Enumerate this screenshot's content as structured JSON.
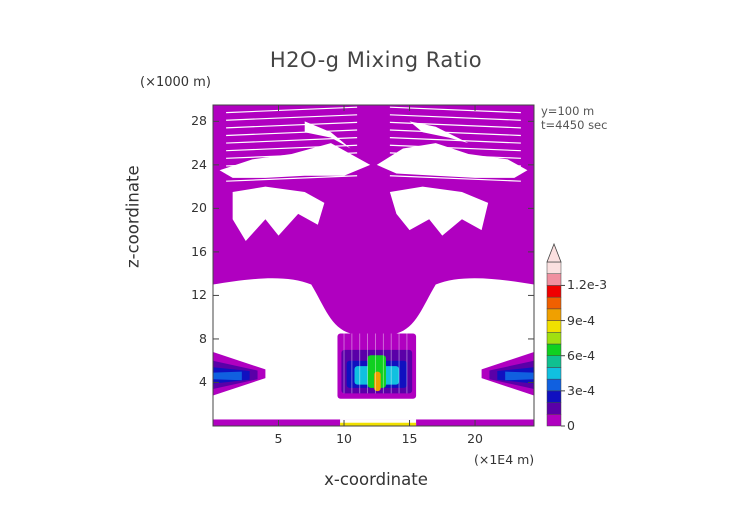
{
  "chart_data": {
    "type": "heatmap",
    "title": "H2O-g Mixing Ratio",
    "xlabel": "x-coordinate",
    "ylabel": "z-coordinate",
    "x_unit": "(×1E4 m)",
    "y_unit": "(×1000 m)",
    "annotations": [
      "y=100 m",
      "t=4450 sec"
    ],
    "xlim": [
      0,
      24.5
    ],
    "ylim": [
      0,
      29.5
    ],
    "x_ticks": [
      5,
      10,
      15,
      20
    ],
    "y_ticks": [
      4,
      8,
      12,
      16,
      20,
      24,
      28
    ],
    "colorbar": {
      "levels": [
        0,
        0.0001,
        0.0002,
        0.0003,
        0.0004,
        0.0005,
        0.0006,
        0.0007,
        0.0008,
        0.0009,
        0.001,
        0.0011,
        0.0012,
        0.0013
      ],
      "colors": [
        "#b000c0",
        "#5a00a8",
        "#1010c0",
        "#1060e0",
        "#10c0e0",
        "#10c090",
        "#10d020",
        "#a0e010",
        "#f0e000",
        "#f0a000",
        "#f06000",
        "#f00000",
        "#f090a0",
        "#fbe0e0"
      ],
      "tick_labels": [
        "0",
        "3e-4",
        "6e-4",
        "9e-4",
        "1.2e-3"
      ],
      "tick_values": [
        0,
        0.0003,
        0.0006,
        0.0009,
        0.0012
      ],
      "extend": "max"
    },
    "regions": [
      {
        "name": "upper-layer-background",
        "value": 1e-05,
        "x": [
          0,
          24.5
        ],
        "z": [
          12,
          29.5
        ]
      },
      {
        "name": "left-side-band",
        "value": 0.00025,
        "x": [
          0,
          3.5
        ],
        "z": [
          3,
          6.5
        ]
      },
      {
        "name": "right-side-band",
        "value": 0.00025,
        "x": [
          21,
          24.5
        ],
        "z": [
          3,
          6.5
        ]
      },
      {
        "name": "central-core",
        "value": 0.0009,
        "x": [
          9.5,
          15.5
        ],
        "z": [
          2.5,
          9
        ]
      },
      {
        "name": "surface-layer",
        "value": 1e-05,
        "x": [
          0,
          24.5
        ],
        "z": [
          0,
          0.6
        ]
      }
    ]
  }
}
